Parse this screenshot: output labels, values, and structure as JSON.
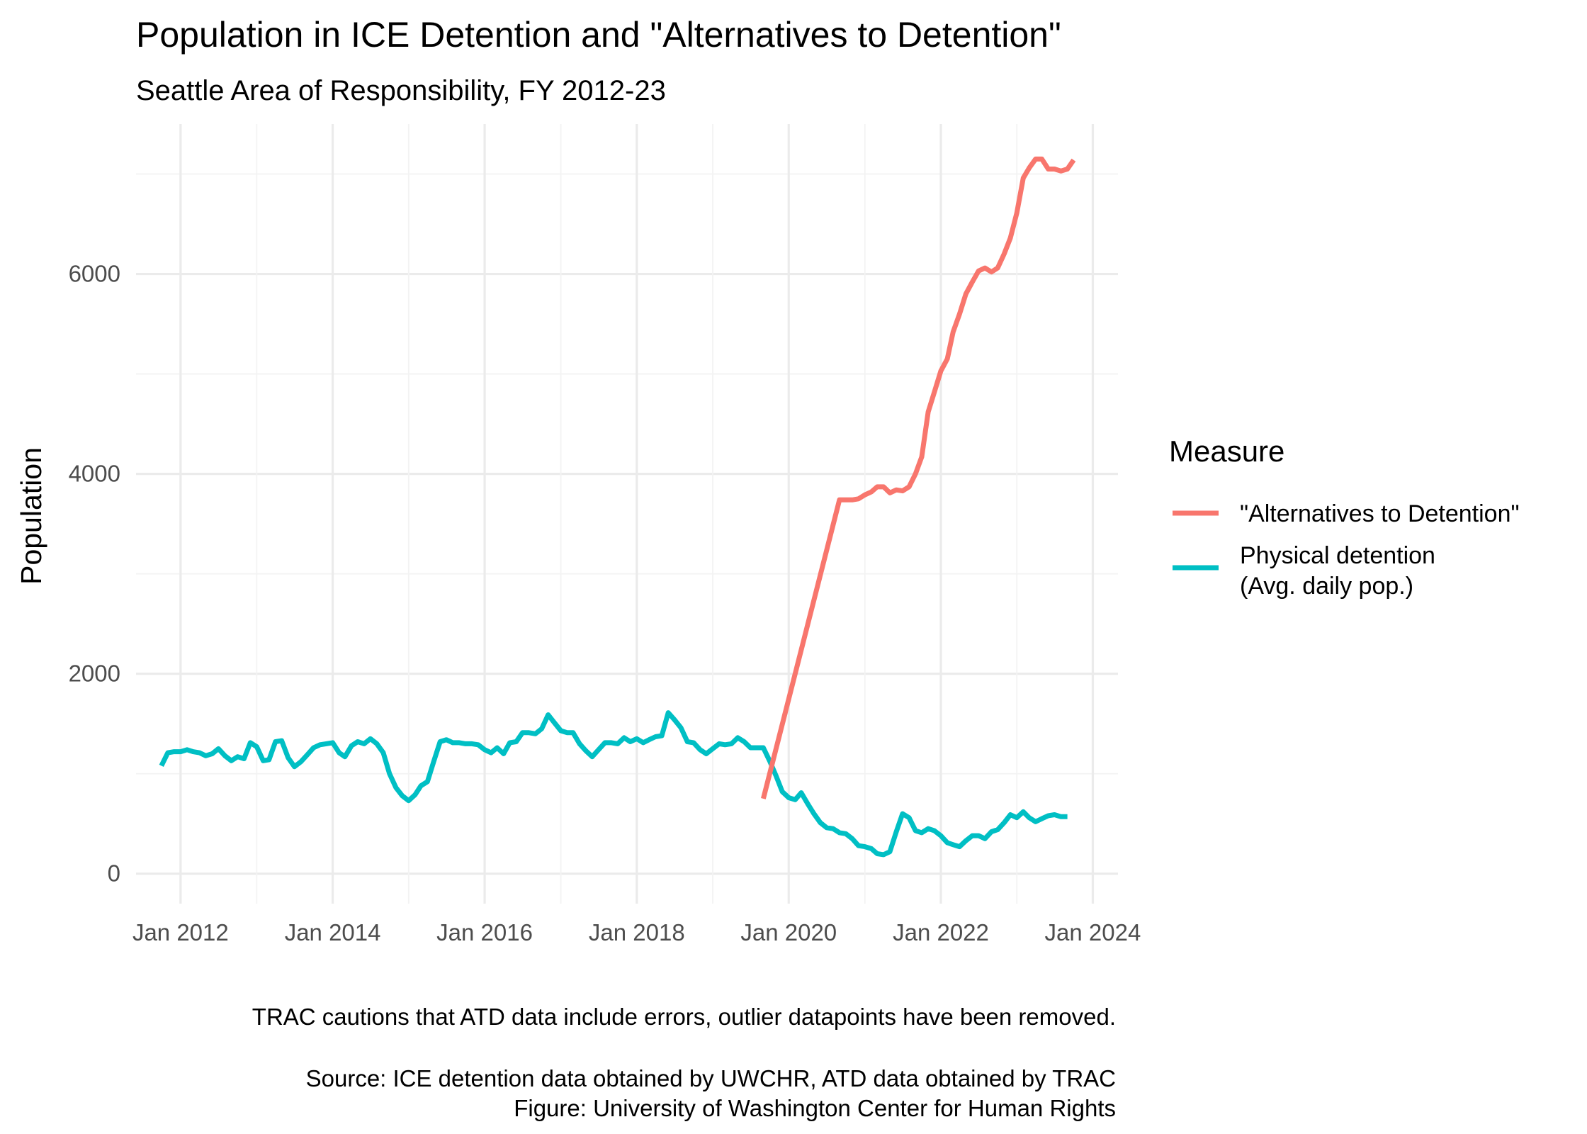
{
  "chart_data": {
    "type": "line",
    "title": "Population in ICE Detention and \"Alternatives to Detention\"",
    "subtitle": "Seattle Area of Responsibility, FY 2012-23",
    "ylabel": "Population",
    "xlabel": "",
    "xlim": [
      "2011-06-01",
      "2024-05-01"
    ],
    "ylim": [
      -300,
      7500
    ],
    "x_ticks": [
      "Jan 2012",
      "Jan 2014",
      "Jan 2016",
      "Jan 2018",
      "Jan 2020",
      "Jan 2022",
      "Jan 2024"
    ],
    "y_ticks": [
      0,
      2000,
      4000,
      6000
    ],
    "grid": true,
    "legend": {
      "title": "Measure",
      "position": "right",
      "entries": [
        {
          "label": "\"Alternatives to Detention\""
        },
        {
          "label_lines": [
            "Physical detention",
            "(Avg. daily pop.)"
          ]
        }
      ]
    },
    "series": [
      {
        "name": "\"Alternatives to Detention\"",
        "color": "#F8766D",
        "points": [
          [
            "2019-09-01",
            750
          ],
          [
            "2020-09-01",
            3740
          ],
          [
            "2020-10-01",
            3740
          ],
          [
            "2020-11-01",
            3740
          ],
          [
            "2020-12-01",
            3750
          ],
          [
            "2021-01-01",
            3790
          ],
          [
            "2021-02-01",
            3820
          ],
          [
            "2021-03-01",
            3870
          ],
          [
            "2021-04-01",
            3870
          ],
          [
            "2021-05-01",
            3810
          ],
          [
            "2021-06-01",
            3840
          ],
          [
            "2021-07-01",
            3830
          ],
          [
            "2021-08-01",
            3870
          ],
          [
            "2021-09-01",
            4000
          ],
          [
            "2021-10-01",
            4170
          ],
          [
            "2021-11-01",
            4620
          ],
          [
            "2021-12-01",
            4820
          ],
          [
            "2022-01-01",
            5030
          ],
          [
            "2022-02-01",
            5150
          ],
          [
            "2022-03-01",
            5420
          ],
          [
            "2022-04-01",
            5600
          ],
          [
            "2022-05-01",
            5800
          ],
          [
            "2022-06-01",
            5920
          ],
          [
            "2022-07-01",
            6030
          ],
          [
            "2022-08-01",
            6060
          ],
          [
            "2022-09-01",
            6020
          ],
          [
            "2022-10-01",
            6060
          ],
          [
            "2022-11-01",
            6200
          ],
          [
            "2022-12-01",
            6360
          ],
          [
            "2023-01-01",
            6610
          ],
          [
            "2023-02-01",
            6960
          ],
          [
            "2023-03-01",
            7060
          ],
          [
            "2023-04-01",
            7150
          ],
          [
            "2023-05-01",
            7150
          ],
          [
            "2023-06-01",
            7050
          ],
          [
            "2023-07-01",
            7050
          ],
          [
            "2023-08-01",
            7030
          ],
          [
            "2023-09-01",
            7050
          ],
          [
            "2023-10-01",
            7140
          ]
        ]
      },
      {
        "name_lines": [
          "Physical detention",
          "(Avg. daily pop.)"
        ],
        "color": "#00BFC4",
        "points": [
          [
            "2011-10-01",
            1080
          ],
          [
            "2011-11-01",
            1210
          ],
          [
            "2011-12-01",
            1220
          ],
          [
            "2012-01-01",
            1220
          ],
          [
            "2012-02-01",
            1240
          ],
          [
            "2012-03-01",
            1220
          ],
          [
            "2012-04-01",
            1210
          ],
          [
            "2012-05-01",
            1180
          ],
          [
            "2012-06-01",
            1200
          ],
          [
            "2012-07-01",
            1250
          ],
          [
            "2012-08-01",
            1180
          ],
          [
            "2012-09-01",
            1130
          ],
          [
            "2012-10-01",
            1170
          ],
          [
            "2012-11-01",
            1150
          ],
          [
            "2012-12-01",
            1310
          ],
          [
            "2013-01-01",
            1270
          ],
          [
            "2013-02-01",
            1130
          ],
          [
            "2013-03-01",
            1140
          ],
          [
            "2013-04-01",
            1320
          ],
          [
            "2013-05-01",
            1330
          ],
          [
            "2013-06-01",
            1160
          ],
          [
            "2013-07-01",
            1070
          ],
          [
            "2013-08-01",
            1120
          ],
          [
            "2013-09-01",
            1190
          ],
          [
            "2013-10-01",
            1260
          ],
          [
            "2013-11-01",
            1290
          ],
          [
            "2013-12-01",
            1300
          ],
          [
            "2014-01-01",
            1310
          ],
          [
            "2014-02-01",
            1210
          ],
          [
            "2014-03-01",
            1170
          ],
          [
            "2014-04-01",
            1280
          ],
          [
            "2014-05-01",
            1320
          ],
          [
            "2014-06-01",
            1300
          ],
          [
            "2014-07-01",
            1350
          ],
          [
            "2014-08-01",
            1300
          ],
          [
            "2014-09-01",
            1210
          ],
          [
            "2014-10-01",
            1000
          ],
          [
            "2014-11-01",
            860
          ],
          [
            "2014-12-01",
            780
          ],
          [
            "2015-01-01",
            730
          ],
          [
            "2015-02-01",
            790
          ],
          [
            "2015-03-01",
            880
          ],
          [
            "2015-04-01",
            920
          ],
          [
            "2015-05-01",
            1120
          ],
          [
            "2015-06-01",
            1320
          ],
          [
            "2015-07-01",
            1340
          ],
          [
            "2015-08-01",
            1310
          ],
          [
            "2015-09-01",
            1310
          ],
          [
            "2015-10-01",
            1300
          ],
          [
            "2015-11-01",
            1300
          ],
          [
            "2015-12-01",
            1290
          ],
          [
            "2016-01-01",
            1240
          ],
          [
            "2016-02-01",
            1210
          ],
          [
            "2016-03-01",
            1260
          ],
          [
            "2016-04-01",
            1200
          ],
          [
            "2016-05-01",
            1310
          ],
          [
            "2016-06-01",
            1320
          ],
          [
            "2016-07-01",
            1410
          ],
          [
            "2016-08-01",
            1410
          ],
          [
            "2016-09-01",
            1400
          ],
          [
            "2016-10-01",
            1450
          ],
          [
            "2016-11-01",
            1590
          ],
          [
            "2016-12-01",
            1510
          ],
          [
            "2017-01-01",
            1430
          ],
          [
            "2017-02-01",
            1410
          ],
          [
            "2017-03-01",
            1410
          ],
          [
            "2017-04-01",
            1300
          ],
          [
            "2017-05-01",
            1230
          ],
          [
            "2017-06-01",
            1170
          ],
          [
            "2017-07-01",
            1240
          ],
          [
            "2017-08-01",
            1310
          ],
          [
            "2017-09-01",
            1310
          ],
          [
            "2017-10-01",
            1300
          ],
          [
            "2017-11-01",
            1360
          ],
          [
            "2017-12-01",
            1320
          ],
          [
            "2018-01-01",
            1350
          ],
          [
            "2018-02-01",
            1310
          ],
          [
            "2018-03-01",
            1340
          ],
          [
            "2018-04-01",
            1370
          ],
          [
            "2018-05-01",
            1380
          ],
          [
            "2018-06-01",
            1610
          ],
          [
            "2018-07-01",
            1540
          ],
          [
            "2018-08-01",
            1460
          ],
          [
            "2018-09-01",
            1320
          ],
          [
            "2018-10-01",
            1310
          ],
          [
            "2018-11-01",
            1240
          ],
          [
            "2018-12-01",
            1200
          ],
          [
            "2019-01-01",
            1250
          ],
          [
            "2019-02-01",
            1300
          ],
          [
            "2019-03-01",
            1290
          ],
          [
            "2019-04-01",
            1300
          ],
          [
            "2019-05-01",
            1360
          ],
          [
            "2019-06-01",
            1320
          ],
          [
            "2019-07-01",
            1260
          ],
          [
            "2019-08-01",
            1260
          ],
          [
            "2019-09-01",
            1260
          ],
          [
            "2019-10-01",
            1130
          ],
          [
            "2019-11-01",
            980
          ],
          [
            "2019-12-01",
            820
          ],
          [
            "2020-01-01",
            760
          ],
          [
            "2020-02-01",
            740
          ],
          [
            "2020-03-01",
            810
          ],
          [
            "2020-04-01",
            700
          ],
          [
            "2020-05-01",
            600
          ],
          [
            "2020-06-01",
            510
          ],
          [
            "2020-07-01",
            460
          ],
          [
            "2020-08-01",
            450
          ],
          [
            "2020-09-01",
            410
          ],
          [
            "2020-10-01",
            400
          ],
          [
            "2020-11-01",
            350
          ],
          [
            "2020-12-01",
            280
          ],
          [
            "2021-01-01",
            270
          ],
          [
            "2021-02-01",
            250
          ],
          [
            "2021-03-01",
            200
          ],
          [
            "2021-04-01",
            190
          ],
          [
            "2021-05-01",
            220
          ],
          [
            "2021-06-01",
            420
          ],
          [
            "2021-07-01",
            600
          ],
          [
            "2021-08-01",
            560
          ],
          [
            "2021-09-01",
            430
          ],
          [
            "2021-10-01",
            410
          ],
          [
            "2021-11-01",
            450
          ],
          [
            "2021-12-01",
            430
          ],
          [
            "2022-01-01",
            380
          ],
          [
            "2022-02-01",
            310
          ],
          [
            "2022-03-01",
            290
          ],
          [
            "2022-04-01",
            270
          ],
          [
            "2022-05-01",
            330
          ],
          [
            "2022-06-01",
            380
          ],
          [
            "2022-07-01",
            380
          ],
          [
            "2022-08-01",
            350
          ],
          [
            "2022-09-01",
            420
          ],
          [
            "2022-10-01",
            440
          ],
          [
            "2022-11-01",
            510
          ],
          [
            "2022-12-01",
            590
          ],
          [
            "2023-01-01",
            560
          ],
          [
            "2023-02-01",
            620
          ],
          [
            "2023-03-01",
            560
          ],
          [
            "2023-04-01",
            520
          ],
          [
            "2023-05-01",
            550
          ],
          [
            "2023-06-01",
            580
          ],
          [
            "2023-07-01",
            590
          ],
          [
            "2023-08-01",
            570
          ],
          [
            "2023-09-01",
            570
          ]
        ]
      }
    ],
    "captions": [
      "TRAC cautions that ATD data include errors, outlier datapoints have been removed.",
      "Source: ICE detention data obtained by UWCHR, ATD data obtained by TRAC",
      "Figure: University of Washington Center for Human Rights"
    ]
  }
}
